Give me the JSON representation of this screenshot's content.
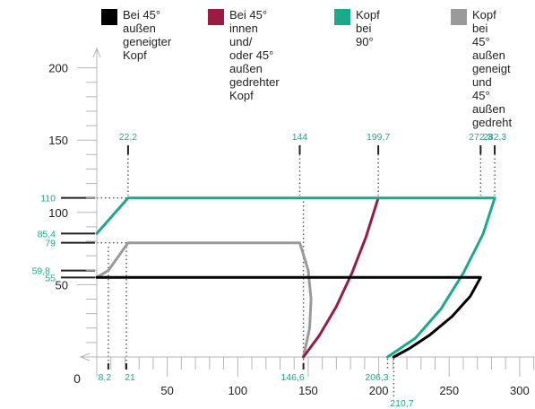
{
  "chart_data": {
    "type": "line",
    "legend": [
      {
        "name": "Bei 45°\naußen\ngeneigter\nKopf",
        "color": "#000000"
      },
      {
        "name": "Bei 45°\ninnen und/\noder 45°\naußen\ngedrehter\nKopf",
        "color": "#9b1b42"
      },
      {
        "name": "Kopf\nbei 90°",
        "color": "#1aa98a"
      },
      {
        "name": "Kopf bei\n45° außen\ngeneigt\nund 45°\naußen\ngedreht",
        "color": "#9a9a9a"
      }
    ],
    "xlim": [
      0,
      300
    ],
    "ylim": [
      0,
      200
    ],
    "x_ticks": [
      "0",
      "50",
      "100",
      "150",
      "200",
      "250",
      "300"
    ],
    "y_ticks": [
      "200",
      "150",
      "100",
      "50"
    ],
    "x_markers": [
      {
        "value": 8.2,
        "label": "8,2"
      },
      {
        "value": 21,
        "label": "21"
      },
      {
        "value": 146.6,
        "label": "146,6"
      },
      {
        "value": 206.3,
        "label": "206,3"
      },
      {
        "value": 210.7,
        "label": "210,7"
      }
    ],
    "y_markers": [
      {
        "value": 110,
        "label": "110"
      },
      {
        "value": 85.4,
        "label": "85,4"
      },
      {
        "value": 79,
        "label": "79"
      },
      {
        "value": 59.8,
        "label": "59,8"
      },
      {
        "value": 55,
        "label": "55"
      }
    ],
    "top_markers": [
      {
        "value": 22.2,
        "label": "22,2"
      },
      {
        "value": 144,
        "label": "144"
      },
      {
        "value": 199.7,
        "label": "199,7"
      },
      {
        "value": 272.3,
        "label": "272,3"
      },
      {
        "value": 282.3,
        "label": "282,3"
      }
    ],
    "series": [
      {
        "color": "#000000",
        "points": [
          [
            0,
            55
          ],
          [
            272.3,
            55
          ],
          [
            265,
            42
          ],
          [
            252,
            28
          ],
          [
            236,
            15
          ],
          [
            222,
            6
          ],
          [
            210.7,
            0
          ]
        ]
      },
      {
        "color": "#9b1b42",
        "points": [
          [
            146.6,
            0
          ],
          [
            158,
            15
          ],
          [
            170,
            35
          ],
          [
            181,
            58
          ],
          [
            191,
            83
          ],
          [
            199.7,
            110
          ]
        ]
      },
      {
        "color": "#1aa98a",
        "points": [
          [
            0,
            85.4
          ],
          [
            22.2,
            110
          ],
          [
            282.3,
            110
          ],
          [
            274,
            85
          ],
          [
            260,
            58
          ],
          [
            244,
            33
          ],
          [
            226,
            13
          ],
          [
            206.3,
            0
          ]
        ]
      },
      {
        "color": "#9a9a9a",
        "points": [
          [
            0,
            55
          ],
          [
            8.2,
            59.8
          ],
          [
            22.2,
            79
          ],
          [
            144,
            79
          ],
          [
            150,
            60
          ],
          [
            152,
            40
          ],
          [
            151,
            20
          ],
          [
            146.6,
            0
          ]
        ]
      }
    ]
  }
}
